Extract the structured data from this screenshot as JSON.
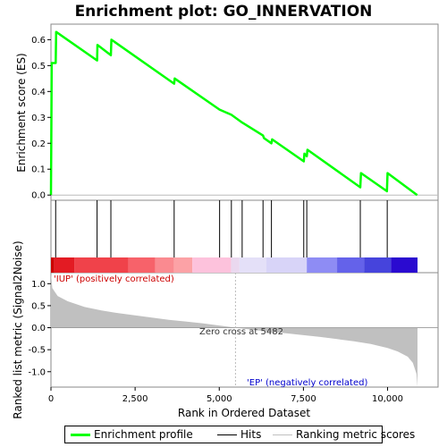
{
  "chart_data": {
    "type": "line",
    "title": "Enrichment plot: GO_INNERVATION",
    "x_axis": {
      "label": "Rank in Ordered Dataset",
      "range": [
        0,
        11500
      ],
      "ticks": [
        0,
        2500,
        5000,
        7500,
        10000
      ],
      "tick_labels": [
        "0",
        "2,500",
        "5,000",
        "7,500",
        "10,000"
      ]
    },
    "es_panel": {
      "ylabel": "Enrichment score (ES)",
      "ylim": [
        -0.02,
        0.66
      ],
      "ticks": [
        0.0,
        0.1,
        0.2,
        0.3,
        0.4,
        0.5,
        0.6
      ],
      "tick_labels": [
        "0.0",
        "0.1",
        "0.2",
        "0.3",
        "0.4",
        "0.5",
        "0.6"
      ],
      "series": {
        "name": "Enrichment profile",
        "color": "#00ff00",
        "points": [
          [
            0,
            0.0
          ],
          [
            8,
            0.17
          ],
          [
            16,
            0.36
          ],
          [
            22,
            0.51
          ],
          [
            140,
            0.51
          ],
          [
            155,
            0.63
          ],
          [
            1370,
            0.52
          ],
          [
            1380,
            0.58
          ],
          [
            1780,
            0.54
          ],
          [
            1795,
            0.6
          ],
          [
            3660,
            0.43
          ],
          [
            3675,
            0.45
          ],
          [
            5010,
            0.33
          ],
          [
            5360,
            0.31
          ],
          [
            5680,
            0.28
          ],
          [
            6300,
            0.23
          ],
          [
            6330,
            0.22
          ],
          [
            6550,
            0.2
          ],
          [
            6570,
            0.215
          ],
          [
            7510,
            0.13
          ],
          [
            7530,
            0.16
          ],
          [
            7600,
            0.15
          ],
          [
            7620,
            0.175
          ],
          [
            9190,
            0.03
          ],
          [
            9210,
            0.085
          ],
          [
            9980,
            0.015
          ],
          [
            10000,
            0.085
          ],
          [
            10880,
            0.0
          ]
        ]
      }
    },
    "hits": {
      "name": "Hits",
      "ranks": [
        140,
        1370,
        1780,
        3660,
        5010,
        5360,
        5680,
        6300,
        6550,
        7510,
        7600,
        9190,
        9990
      ]
    },
    "metric_panel": {
      "ylabel": "Ranked list metric (Signal2Noise)",
      "ylim": [
        -1.35,
        1.25
      ],
      "ticks": [
        -1.0,
        -0.5,
        0.0,
        0.5,
        1.0
      ],
      "tick_labels": [
        "-1.0",
        "-0.5",
        "0.0",
        "0.5",
        "1.0"
      ],
      "series": {
        "name": "Ranking metric scores",
        "color": "#c0c0c0",
        "points": [
          [
            0,
            1.25
          ],
          [
            40,
            0.9
          ],
          [
            200,
            0.72
          ],
          [
            500,
            0.6
          ],
          [
            1000,
            0.47
          ],
          [
            1500,
            0.39
          ],
          [
            2000,
            0.33
          ],
          [
            2500,
            0.28
          ],
          [
            3000,
            0.23
          ],
          [
            3500,
            0.18
          ],
          [
            4000,
            0.14
          ],
          [
            4500,
            0.1
          ],
          [
            5000,
            0.05
          ],
          [
            5482,
            0.0
          ],
          [
            6000,
            -0.05
          ],
          [
            6500,
            -0.09
          ],
          [
            7000,
            -0.13
          ],
          [
            7500,
            -0.17
          ],
          [
            8000,
            -0.21
          ],
          [
            8500,
            -0.26
          ],
          [
            9000,
            -0.31
          ],
          [
            9500,
            -0.37
          ],
          [
            10000,
            -0.46
          ],
          [
            10300,
            -0.54
          ],
          [
            10600,
            -0.66
          ],
          [
            10750,
            -0.8
          ],
          [
            10860,
            -1.05
          ],
          [
            10890,
            -1.35
          ],
          [
            10890,
            0
          ]
        ]
      },
      "annotations": {
        "positive": "'IUP' (positively correlated)",
        "negative": "'EP' (negatively correlated)",
        "zero_cross": "Zero cross at 5482"
      },
      "colors": {
        "positive": "#cc0000",
        "negative": "#0000cc"
      }
    },
    "heatmap_bands": [
      {
        "from": 0,
        "to": 100,
        "color": "#cc0000"
      },
      {
        "from": 100,
        "to": 700,
        "color": "#e31b23"
      },
      {
        "from": 700,
        "to": 2300,
        "color": "#f0424a"
      },
      {
        "from": 2300,
        "to": 3100,
        "color": "#f7626a"
      },
      {
        "from": 3100,
        "to": 3650,
        "color": "#fa8a90"
      },
      {
        "from": 3650,
        "to": 4200,
        "color": "#fca2a6"
      },
      {
        "from": 4200,
        "to": 5350,
        "color": "#fdc2dc"
      },
      {
        "from": 5350,
        "to": 5600,
        "color": "#ead8ef"
      },
      {
        "from": 5600,
        "to": 6400,
        "color": "#e4e0f8"
      },
      {
        "from": 6400,
        "to": 7600,
        "color": "#d8d4f8"
      },
      {
        "from": 7600,
        "to": 8500,
        "color": "#8e8cf4"
      },
      {
        "from": 8500,
        "to": 9300,
        "color": "#6462ea"
      },
      {
        "from": 9300,
        "to": 10100,
        "color": "#4644dc"
      },
      {
        "from": 10100,
        "to": 10890,
        "color": "#2a0ad0"
      }
    ],
    "legend": [
      {
        "label": "Enrichment profile",
        "color": "#00ff00"
      },
      {
        "label": "Hits",
        "color": "#000000"
      },
      {
        "label": "Ranking metric scores",
        "color": "#c0c0c0"
      }
    ]
  }
}
